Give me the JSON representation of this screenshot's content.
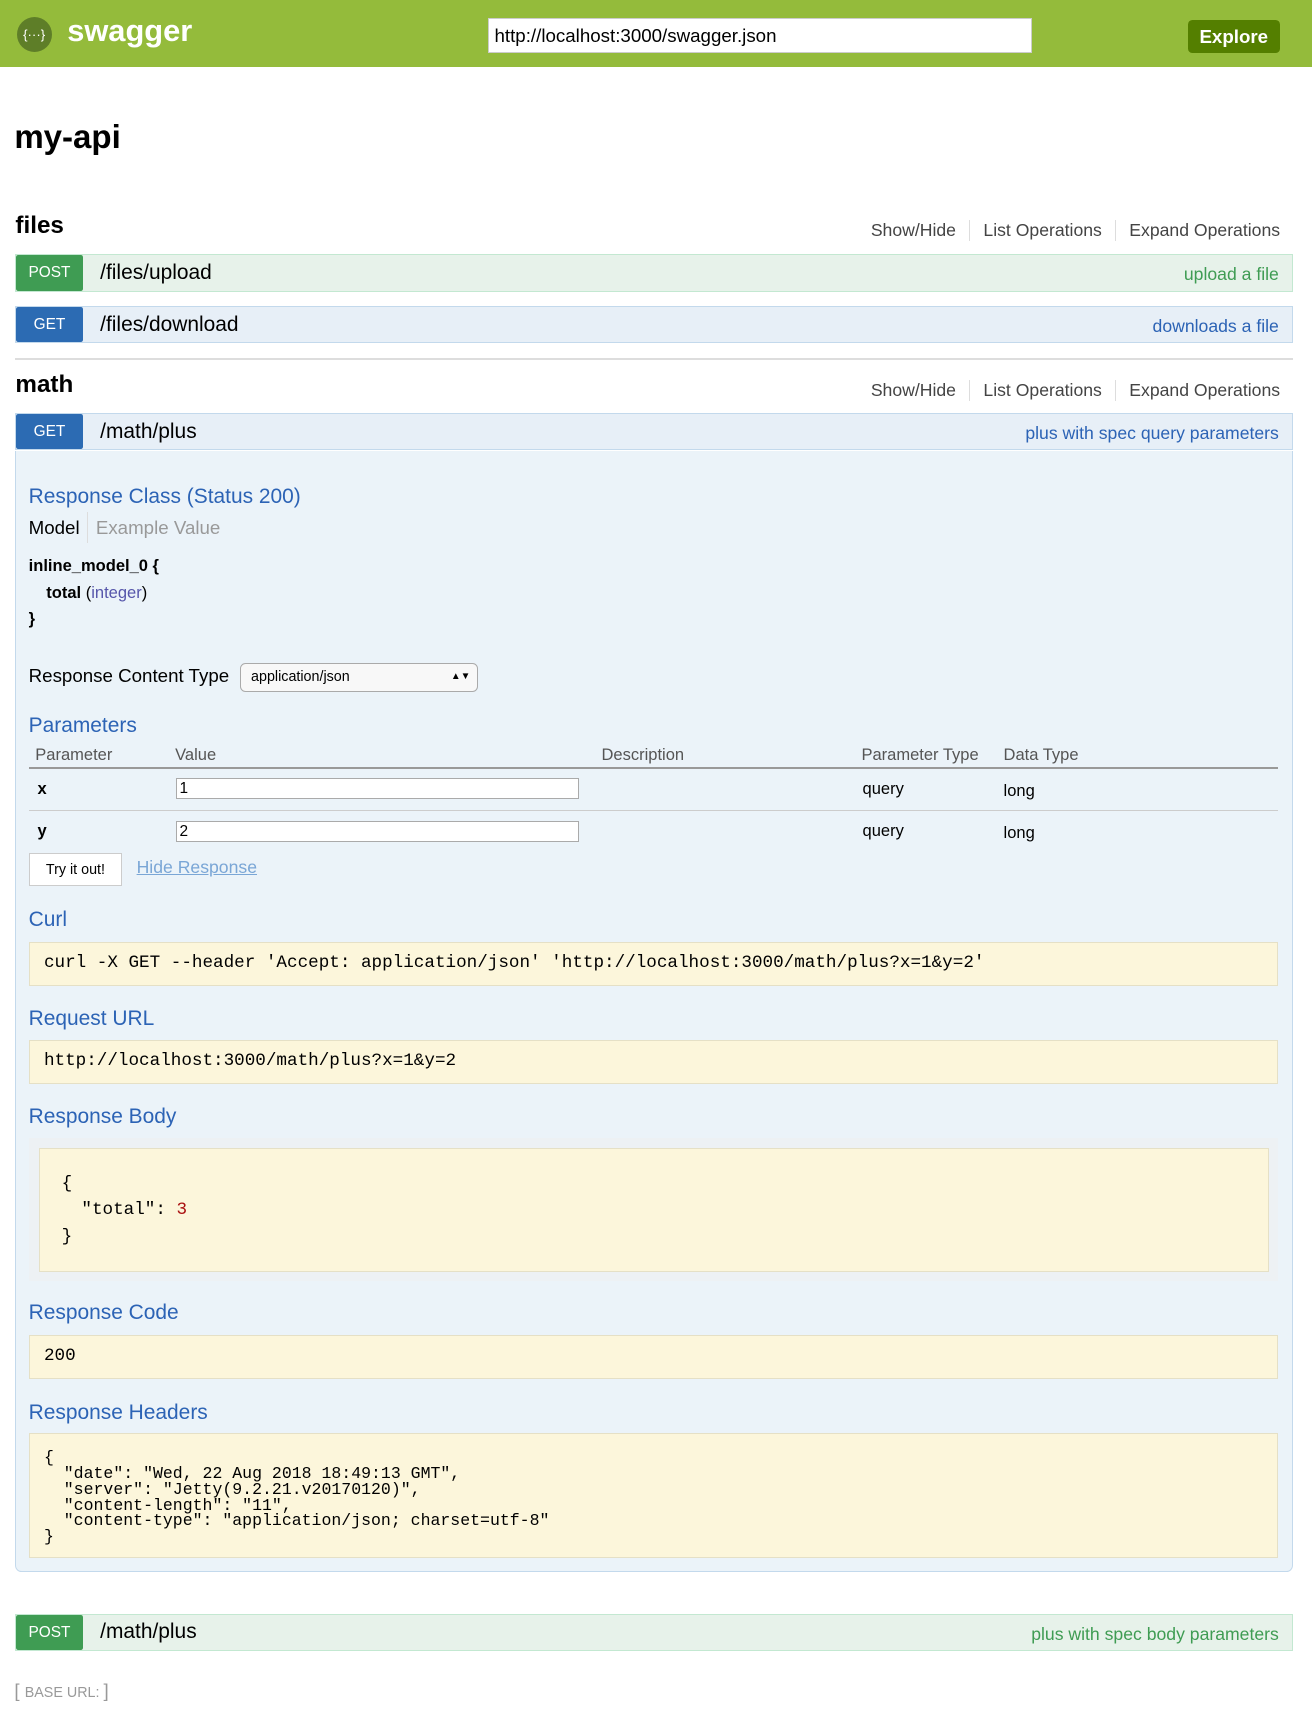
{
  "header": {
    "brand": "swagger",
    "url": "http://localhost:3000/swagger.json",
    "explore": "Explore",
    "logo_icon": "swagger-braces-icon"
  },
  "title": "my-api",
  "groups": [
    {
      "name": "files",
      "links": [
        "Show/Hide",
        "List Operations",
        "Expand Operations"
      ],
      "ops": [
        {
          "method": "POST",
          "path": "/files/upload",
          "summary": "upload a file"
        },
        {
          "method": "GET",
          "path": "/files/download",
          "summary": "downloads a file"
        }
      ]
    },
    {
      "name": "math",
      "links": [
        "Show/Hide",
        "List Operations",
        "Expand Operations"
      ],
      "ops": [
        {
          "method": "GET",
          "path": "/math/plus",
          "summary": "plus with spec query parameters"
        },
        {
          "method": "POST",
          "path": "/math/plus",
          "summary": "plus with spec body parameters"
        }
      ]
    }
  ],
  "detail": {
    "response_class": "Response Class (Status 200)",
    "tabs": [
      "Model",
      "Example Value"
    ],
    "model_open": "inline_model_0 {",
    "model_prop": "total",
    "model_type": "integer",
    "model_close": "}",
    "content_type_label": "Response Content Type",
    "content_type": "application/json",
    "parameters_title": "Parameters",
    "columns": [
      "Parameter",
      "Value",
      "Description",
      "Parameter Type",
      "Data Type"
    ],
    "params": [
      {
        "name": "x",
        "value": "1",
        "description": "",
        "ptype": "query",
        "dtype": "long"
      },
      {
        "name": "y",
        "value": "2",
        "description": "",
        "ptype": "query",
        "dtype": "long"
      }
    ],
    "try_button": "Try it out!",
    "hide_response": "Hide Response",
    "curl_title": "Curl",
    "curl": "curl -X GET --header 'Accept: application/json' 'http://localhost:3000/math/plus?x=1&y=2'",
    "request_url_title": "Request URL",
    "request_url": "http://localhost:3000/math/plus?x=1&y=2",
    "response_body_title": "Response Body",
    "body_open": "{",
    "body_key": "\"total\": ",
    "body_value": "3",
    "body_close": "}",
    "response_code_title": "Response Code",
    "response_code": "200",
    "response_headers_title": "Response Headers",
    "response_headers": "{\n  \"date\": \"Wed, 22 Aug 2018 18:49:13 GMT\",\n  \"server\": \"Jetty(9.2.21.v20170120)\",\n  \"content-length\": \"11\",\n  \"content-type\": \"application/json; charset=utf-8\"\n}"
  },
  "footer": {
    "base_url_label": "BASE URL",
    "base_url": ": "
  },
  "colors": {
    "header": "#94bb3b",
    "post": "#3f9c53",
    "get": "#2c6bb3",
    "link": "#2c63b5"
  }
}
